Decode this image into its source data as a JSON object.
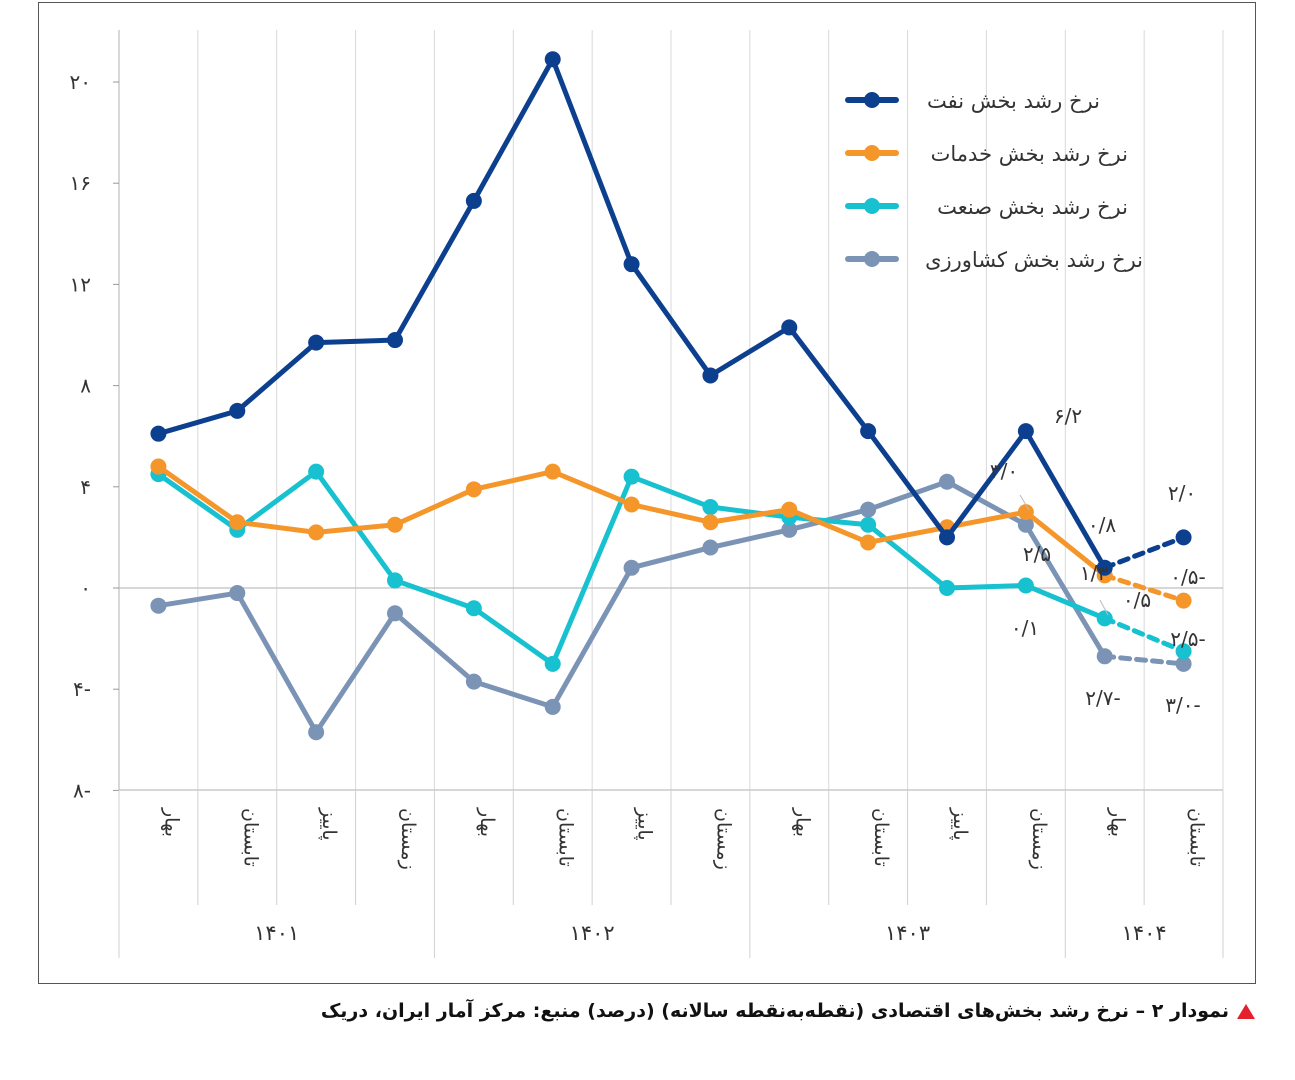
{
  "chart_data": {
    "type": "line",
    "title": "",
    "xlabel": "",
    "ylabel": "",
    "ylim": [
      -8,
      22
    ],
    "yticks": [
      -8,
      -4,
      0,
      4,
      8,
      12,
      16,
      20
    ],
    "ytick_labels": [
      "۸-",
      "۴-",
      "۰",
      "۴",
      "۸",
      "۱۲",
      "۱۶",
      "۲۰"
    ],
    "grid": "vertical",
    "categories": [
      "بهار",
      "تابستان",
      "پاییز",
      "زمستان",
      "بهار",
      "تابستان",
      "پاییز",
      "زمستان",
      "بهار",
      "تابستان",
      "پاییز",
      "زمستان",
      "بهار",
      "تابستان"
    ],
    "years": [
      {
        "label": "۱۴۰۱",
        "span": 4
      },
      {
        "label": "۱۴۰۲",
        "span": 4
      },
      {
        "label": "۱۴۰۳",
        "span": 4
      },
      {
        "label": "۱۴۰۴",
        "span": 2
      }
    ],
    "series": [
      {
        "name": "نرخ رشد بخش کشاورزی",
        "color": "#7b93b5",
        "values": [
          -0.7,
          -0.2,
          -5.7,
          -1.0,
          -3.7,
          -4.7,
          0.8,
          1.6,
          2.3,
          3.1,
          4.2,
          2.5,
          -2.7,
          -3.0
        ],
        "labels": [
          {
            "i": 11,
            "text": "۲/۵"
          },
          {
            "i": 12,
            "text": "۲/۷-"
          },
          {
            "i": 13,
            "text": "۳/۰-"
          }
        ]
      },
      {
        "name": "نرخ رشد بخش صنعت",
        "color": "#17c1cf",
        "values": [
          4.5,
          2.3,
          4.6,
          0.3,
          -0.8,
          -3.0,
          4.4,
          3.2,
          2.8,
          2.5,
          0.0,
          0.1,
          -1.2,
          -2.5
        ],
        "labels": [
          {
            "i": 11,
            "text": "۰/۱"
          },
          {
            "i": 13,
            "text": "۲/۵-"
          }
        ]
      },
      {
        "name": "نرخ رشد بخش خدمات",
        "color": "#f5962a",
        "values": [
          4.8,
          2.6,
          2.2,
          2.5,
          3.9,
          4.6,
          3.3,
          2.6,
          3.1,
          1.8,
          2.4,
          3.0,
          0.5,
          -0.5
        ],
        "labels": [
          {
            "i": 11,
            "text": "۳/۰"
          },
          {
            "i": 12,
            "text": "۰/۵"
          },
          {
            "i": 13,
            "text": "۰/۵-"
          }
        ]
      },
      {
        "name": "نرخ رشد بخش نفت",
        "color": "#0d3f8f",
        "values": [
          6.1,
          7.0,
          9.7,
          9.8,
          15.3,
          20.9,
          12.8,
          8.4,
          10.3,
          6.2,
          2.0,
          6.2,
          0.8,
          2.0
        ],
        "labels": [
          {
            "i": 11,
            "text": "۶/۲"
          },
          {
            "i": 12,
            "text": "۰/۸"
          },
          {
            "i": 13,
            "text": "۲/۰"
          }
        ]
      }
    ],
    "extra_labels": [
      "۱/۳"
    ],
    "dashed_last_segment": true,
    "legend_position": "top-right",
    "legend_order": [
      "نرخ رشد بخش نفت",
      "نرخ رشد بخش خدمات",
      "نرخ رشد بخش صنعت",
      "نرخ رشد بخش کشاورزی"
    ]
  },
  "caption": {
    "text": "نمودار ۲ – نرخ رشد بخش‌های اقتصادی (نقطه‌به‌نقطه سالانه) (درصد) منبع: مرکز آمار ایران، دریک",
    "marker_color": "#e5202e"
  }
}
